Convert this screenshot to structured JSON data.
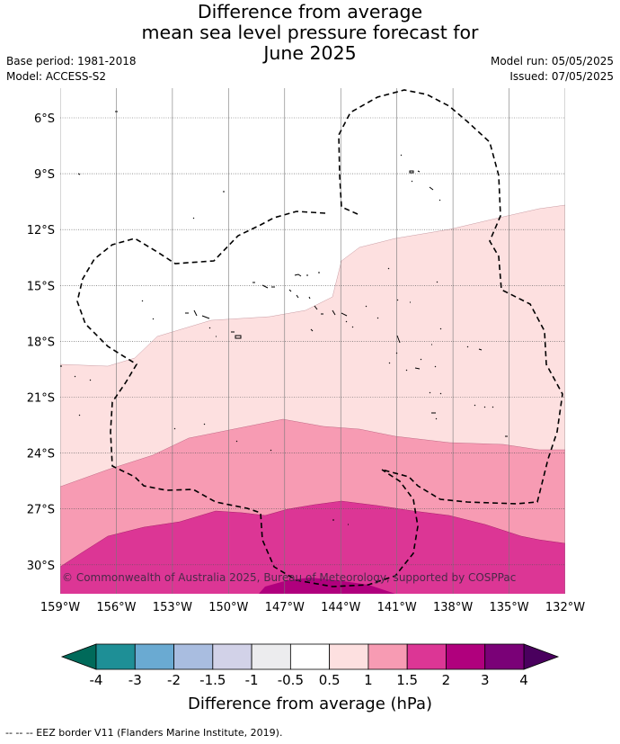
{
  "title": [
    "Difference from average",
    "mean sea level pressure forecast for",
    "June 2025"
  ],
  "meta_left": [
    "Base period: 1981-2018",
    "Model: ACCESS-S2"
  ],
  "meta_right": [
    "Model run: 05/05/2025",
    "Issued: 07/05/2025"
  ],
  "copyright": "© Commonwealth of Australia 2025, Bureau of Meteorology, supported by COSPPac",
  "axes": {
    "lat_labels": [
      "6°S",
      "9°S",
      "12°S",
      "15°S",
      "18°S",
      "21°S",
      "24°S",
      "27°S",
      "30°S"
    ],
    "lon_labels": [
      "159°W",
      "156°W",
      "153°W",
      "150°W",
      "147°W",
      "144°W",
      "141°W",
      "138°W",
      "135°W",
      "132°W"
    ]
  },
  "colorbar": {
    "label": "Difference from average (hPa)",
    "tick_labels": [
      "-4",
      "-3",
      "-2",
      "-1.5",
      "-1",
      "-0.5",
      "0.5",
      "1",
      "1.5",
      "2",
      "3",
      "4"
    ],
    "colors": [
      "#1e8f96",
      "#6aaad2",
      "#a9bde0",
      "#d2d2e8",
      "#ececee",
      "#ffffff",
      "#fde0e0",
      "#f79bb3",
      "#dc3695",
      "#b0007d",
      "#7a0177"
    ],
    "under_color": "#006a5a",
    "over_color": "#4a005e"
  },
  "legend_footer": "-- -- -- EEZ border V11 (Flanders Marine Institute, 2019)."
}
